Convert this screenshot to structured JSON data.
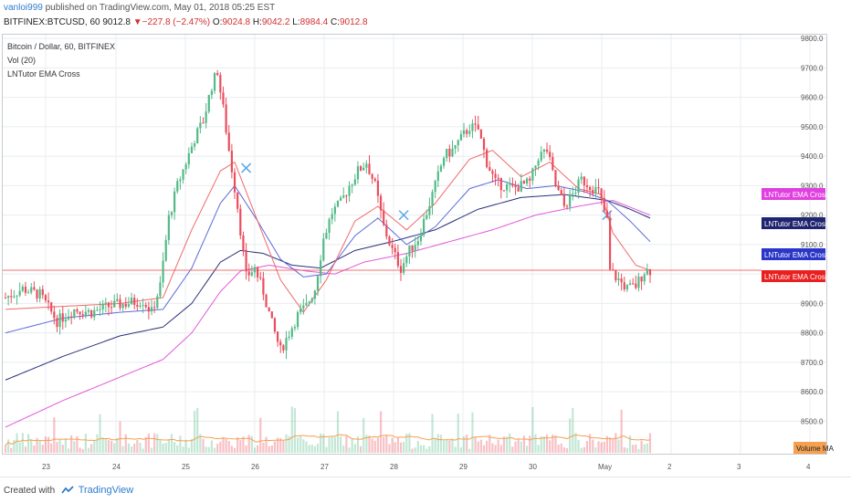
{
  "header": {
    "author": "vanloi999",
    "published": " published on TradingView.com, May 01, 2018 05:25 EST",
    "symbol": "BITFINEX:BTCUSD, 60",
    "last": "9012.8",
    "arrow": "▼",
    "change": "−227.8 (−2.47%)",
    "o_label": "O:",
    "o": "9024.8",
    "h_label": "H:",
    "h": "9042.2",
    "l_label": "L:",
    "l": "8984.4",
    "c_label": "C:",
    "c": "9012.8"
  },
  "legend": {
    "title": "Bitcoin / Dollar, 60, BITFINEX",
    "vol": "Vol (20)",
    "indicator": "LNTutor EMA Cross"
  },
  "labels": {
    "pink": "LNTutor EMA Cross:Plot",
    "navy": "LNTutor EMA Cross:Plot",
    "blue": "LNTutor EMA Cross:Plot",
    "red": "LNTutor EMA Cross:Plot",
    "volume_ma": "Volume MA"
  },
  "footer": {
    "created": "Created with",
    "brand": "TradingView"
  },
  "colors": {
    "up": "#53b987",
    "down": "#eb4d5c",
    "ema_red": "#f06a6a",
    "ema_blue": "#5b6bd8",
    "ema_pink": "#e05ad8",
    "ema_navy": "#2a2f7a",
    "price_line": "#f04040",
    "grid": "#e8ecf1",
    "vol_ma": "#f5a050"
  },
  "chart_data": {
    "type": "candlestick",
    "yaxis": {
      "ticks": [
        8500,
        8600,
        8700,
        8800,
        8900,
        9000,
        9100,
        9200,
        9300,
        9400,
        9500,
        9600,
        9700,
        9800
      ],
      "labels": [
        "8500.0",
        "8600.0",
        "8700.0",
        "8800.0",
        "8900.0",
        "9000.0",
        "9100.0",
        "9200.0",
        "9300.0",
        "9400.0",
        "9500.0",
        "9600.0",
        "9700.0",
        "9800.0"
      ]
    },
    "xaxis": {
      "labels": [
        "23",
        "24",
        "25",
        "26",
        "27",
        "28",
        "29",
        "30",
        "May",
        "2",
        "3",
        "4"
      ]
    },
    "current_price": 9012.8,
    "close_path": [
      [
        0,
        8920
      ],
      [
        6,
        8950
      ],
      [
        12,
        8930
      ],
      [
        18,
        8840
      ],
      [
        24,
        8880
      ],
      [
        30,
        8870
      ],
      [
        36,
        8890
      ],
      [
        42,
        8900
      ],
      [
        48,
        8910
      ],
      [
        51,
        8870
      ],
      [
        54,
        8960
      ],
      [
        57,
        9190
      ],
      [
        60,
        9300
      ],
      [
        63,
        9380
      ],
      [
        66,
        9460
      ],
      [
        69,
        9520
      ],
      [
        72,
        9640
      ],
      [
        74,
        9690
      ],
      [
        75,
        9620
      ],
      [
        76,
        9560
      ],
      [
        78,
        9420
      ],
      [
        81,
        9230
      ],
      [
        84,
        8990
      ],
      [
        87,
        9020
      ],
      [
        90,
        8940
      ],
      [
        93,
        8830
      ],
      [
        96,
        8740
      ],
      [
        99,
        8800
      ],
      [
        102,
        8860
      ],
      [
        105,
        8890
      ],
      [
        108,
        8950
      ],
      [
        111,
        9120
      ],
      [
        114,
        9210
      ],
      [
        117,
        9240
      ],
      [
        120,
        9300
      ],
      [
        123,
        9350
      ],
      [
        126,
        9380
      ],
      [
        129,
        9300
      ],
      [
        132,
        9160
      ],
      [
        135,
        9080
      ],
      [
        138,
        9020
      ],
      [
        141,
        9080
      ],
      [
        144,
        9120
      ],
      [
        147,
        9210
      ],
      [
        150,
        9300
      ],
      [
        153,
        9400
      ],
      [
        156,
        9420
      ],
      [
        159,
        9460
      ],
      [
        162,
        9500
      ],
      [
        165,
        9490
      ],
      [
        168,
        9380
      ],
      [
        171,
        9310
      ],
      [
        174,
        9300
      ],
      [
        177,
        9290
      ],
      [
        180,
        9300
      ],
      [
        183,
        9310
      ],
      [
        186,
        9400
      ],
      [
        189,
        9420
      ],
      [
        192,
        9300
      ],
      [
        195,
        9230
      ],
      [
        198,
        9270
      ],
      [
        201,
        9320
      ],
      [
        204,
        9300
      ],
      [
        207,
        9280
      ],
      [
        210,
        9180
      ],
      [
        211,
        9010
      ],
      [
        214,
        8980
      ],
      [
        217,
        8950
      ],
      [
        220,
        8960
      ],
      [
        223,
        9010
      ],
      [
        225,
        9013
      ]
    ],
    "ema_fast_path": [
      [
        0,
        8880
      ],
      [
        20,
        8890
      ],
      [
        40,
        8900
      ],
      [
        55,
        8920
      ],
      [
        65,
        9150
      ],
      [
        75,
        9350
      ],
      [
        80,
        9380
      ],
      [
        88,
        9180
      ],
      [
        96,
        8980
      ],
      [
        104,
        8870
      ],
      [
        112,
        8980
      ],
      [
        122,
        9180
      ],
      [
        130,
        9230
      ],
      [
        140,
        9150
      ],
      [
        150,
        9240
      ],
      [
        162,
        9390
      ],
      [
        170,
        9420
      ],
      [
        180,
        9330
      ],
      [
        190,
        9380
      ],
      [
        200,
        9290
      ],
      [
        208,
        9270
      ],
      [
        212,
        9140
      ],
      [
        220,
        9030
      ],
      [
        225,
        9012
      ]
    ],
    "ema_mid_path": [
      [
        0,
        8800
      ],
      [
        20,
        8850
      ],
      [
        40,
        8870
      ],
      [
        55,
        8880
      ],
      [
        65,
        9020
      ],
      [
        75,
        9240
      ],
      [
        80,
        9300
      ],
      [
        88,
        9180
      ],
      [
        96,
        9050
      ],
      [
        104,
        8990
      ],
      [
        112,
        9000
      ],
      [
        122,
        9130
      ],
      [
        130,
        9190
      ],
      [
        140,
        9100
      ],
      [
        150,
        9160
      ],
      [
        162,
        9290
      ],
      [
        172,
        9320
      ],
      [
        182,
        9290
      ],
      [
        192,
        9300
      ],
      [
        202,
        9280
      ],
      [
        210,
        9250
      ],
      [
        218,
        9180
      ],
      [
        225,
        9110
      ]
    ],
    "ema_slow_path": [
      [
        0,
        8640
      ],
      [
        20,
        8720
      ],
      [
        40,
        8790
      ],
      [
        55,
        8820
      ],
      [
        65,
        8900
      ],
      [
        75,
        9040
      ],
      [
        82,
        9080
      ],
      [
        90,
        9070
      ],
      [
        100,
        9030
      ],
      [
        110,
        9020
      ],
      [
        122,
        9080
      ],
      [
        135,
        9110
      ],
      [
        150,
        9150
      ],
      [
        165,
        9220
      ],
      [
        180,
        9260
      ],
      [
        195,
        9270
      ],
      [
        210,
        9250
      ],
      [
        218,
        9220
      ],
      [
        225,
        9190
      ]
    ],
    "ema_long_path": [
      [
        0,
        8480
      ],
      [
        20,
        8570
      ],
      [
        40,
        8650
      ],
      [
        55,
        8710
      ],
      [
        65,
        8800
      ],
      [
        75,
        8940
      ],
      [
        82,
        9010
      ],
      [
        92,
        9030
      ],
      [
        105,
        9010
      ],
      [
        115,
        9000
      ],
      [
        125,
        9040
      ],
      [
        140,
        9070
      ],
      [
        155,
        9110
      ],
      [
        170,
        9150
      ],
      [
        185,
        9200
      ],
      [
        200,
        9230
      ],
      [
        212,
        9250
      ],
      [
        225,
        9200
      ]
    ]
  }
}
